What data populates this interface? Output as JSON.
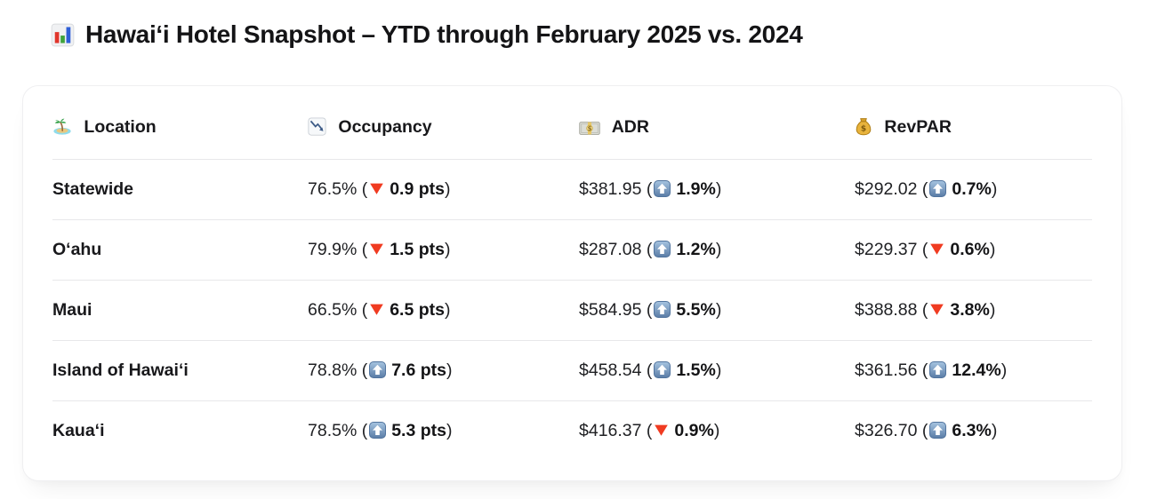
{
  "page": {
    "title": "Hawai‘i Hotel Snapshot – YTD through February 2025 vs. 2024"
  },
  "table": {
    "columns": [
      {
        "label": "Location",
        "icon": "desert-island-icon"
      },
      {
        "label": "Occupancy",
        "icon": "chart-decreasing-icon"
      },
      {
        "label": "ADR",
        "icon": "dollar-banknote-icon"
      },
      {
        "label": "RevPAR",
        "icon": "money-bag-icon"
      }
    ],
    "rows": [
      {
        "location": "Statewide",
        "occupancy": {
          "prefix": "76.5% (",
          "dir": "down",
          "change": "0.9 pts",
          "suffix": ")"
        },
        "adr": {
          "prefix": "$381.95 (",
          "dir": "up",
          "change": "1.9%",
          "suffix": ")"
        },
        "revpar": {
          "prefix": "$292.02 (",
          "dir": "up",
          "change": "0.7%",
          "suffix": ")"
        }
      },
      {
        "location": "O‘ahu",
        "occupancy": {
          "prefix": "79.9% (",
          "dir": "down",
          "change": "1.5 pts",
          "suffix": ")"
        },
        "adr": {
          "prefix": "$287.08 (",
          "dir": "up",
          "change": "1.2%",
          "suffix": ")"
        },
        "revpar": {
          "prefix": "$229.37 (",
          "dir": "down",
          "change": "0.6%",
          "suffix": ")"
        }
      },
      {
        "location": "Maui",
        "occupancy": {
          "prefix": "66.5% (",
          "dir": "down",
          "change": "6.5 pts",
          "suffix": ")"
        },
        "adr": {
          "prefix": "$584.95 (",
          "dir": "up",
          "change": "5.5%",
          "suffix": ")"
        },
        "revpar": {
          "prefix": "$388.88 (",
          "dir": "down",
          "change": "3.8%",
          "suffix": ")"
        }
      },
      {
        "location": "Island of Hawai‘i",
        "occupancy": {
          "prefix": "78.8% (",
          "dir": "up",
          "change": "7.6 pts",
          "suffix": ")"
        },
        "adr": {
          "prefix": "$458.54 (",
          "dir": "up",
          "change": "1.5%",
          "suffix": ")"
        },
        "revpar": {
          "prefix": "$361.56 (",
          "dir": "up",
          "change": "12.4%",
          "suffix": ")"
        }
      },
      {
        "location": "Kaua‘i",
        "occupancy": {
          "prefix": "78.5% (",
          "dir": "up",
          "change": "5.3 pts",
          "suffix": ")"
        },
        "adr": {
          "prefix": "$416.37 (",
          "dir": "down",
          "change": "0.9%",
          "suffix": ")"
        },
        "revpar": {
          "prefix": "$326.70 (",
          "dir": "up",
          "change": "6.3%",
          "suffix": ")"
        }
      }
    ]
  },
  "colors": {
    "up_arrow_badge": "#5a7ca6",
    "down_triangle": "#f03b21",
    "divider": "#e8e8ea"
  }
}
